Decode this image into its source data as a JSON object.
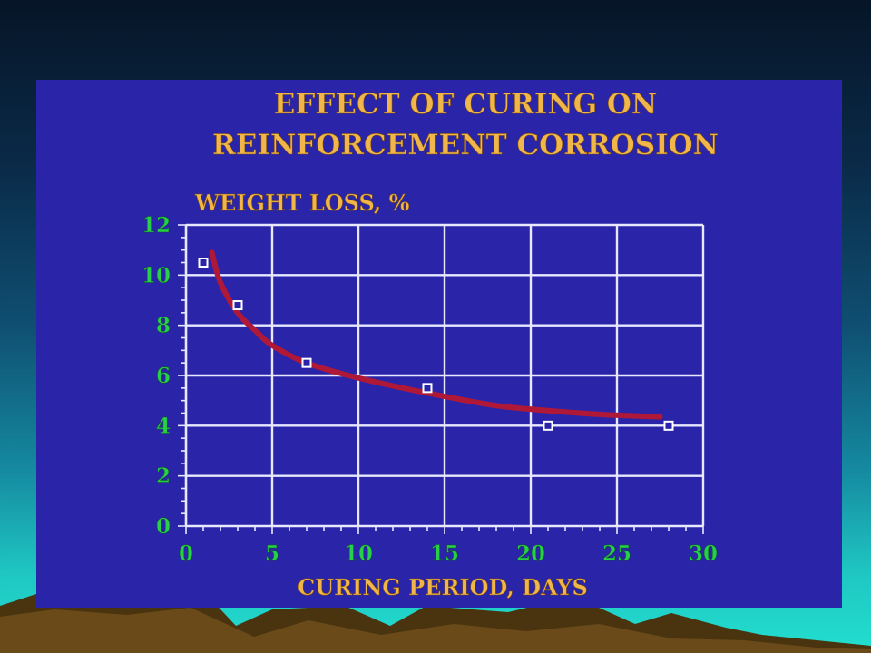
{
  "chart_data": {
    "type": "scatter",
    "title": "EFFECT OF CURING ON",
    "subtitle": "REINFORCEMENT CORROSION",
    "ylabel": "WEIGHT LOSS, %",
    "xlabel": "CURING PERIOD, DAYS",
    "xlim": [
      0,
      30
    ],
    "ylim": [
      0,
      12
    ],
    "xticks": [
      0,
      5,
      10,
      15,
      20,
      25,
      30
    ],
    "yticks": [
      0,
      2,
      4,
      6,
      8,
      10,
      12
    ],
    "grid": true,
    "series": [
      {
        "kind": "points",
        "marker": "open-square",
        "color": "#ffffff",
        "x": [
          1,
          3,
          7,
          14,
          21,
          28
        ],
        "y": [
          10.5,
          8.8,
          6.5,
          5.5,
          4.0,
          4.0
        ]
      },
      {
        "kind": "fit-curve",
        "color": "#b01838",
        "x": [
          1.5,
          2,
          3,
          4,
          5,
          7,
          10,
          14,
          18,
          21,
          24,
          27.5
        ],
        "y": [
          10.9,
          9.7,
          8.5,
          7.8,
          7.2,
          6.5,
          5.9,
          5.3,
          4.8,
          4.6,
          4.45,
          4.35
        ]
      }
    ]
  },
  "colors": {
    "panel": "#2a24a8",
    "grid": "#e8e8ff",
    "title": "#f0b64a",
    "tick_labels": "#28d04a"
  }
}
